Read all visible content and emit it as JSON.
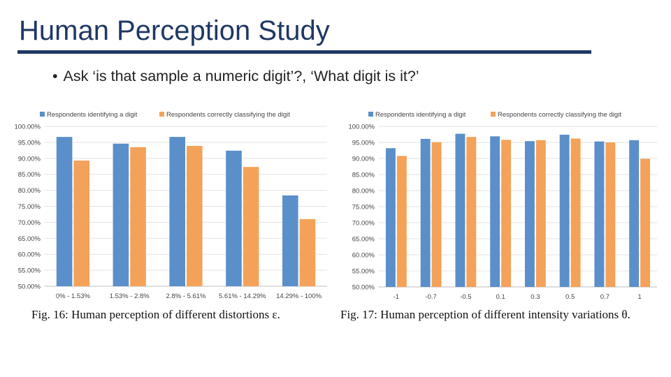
{
  "slide": {
    "title": "Human Perception Study",
    "bullet_marker": "•",
    "bullet": "Ask ‘is that sample a numeric digit’?, ‘What digit is it?’"
  },
  "colors": {
    "series1": "#5b8fc9",
    "series2": "#f4a259",
    "title": "#1f3864"
  },
  "captions": {
    "fig16": "Fig. 16: Human perception of different distortions ε.",
    "fig17": "Fig. 17: Human perception of different intensity variations θ."
  },
  "chart_data": [
    {
      "type": "bar",
      "categories": [
        "0% - 1.53%",
        "1.53% - 2.8%",
        "2.8% - 5.61%",
        "5.61% - 14.29%",
        "14.29% - 100%"
      ],
      "series": [
        {
          "name": "Respondents identifying a digit",
          "values": [
            96.7,
            94.6,
            96.7,
            92.4,
            78.4
          ]
        },
        {
          "name": "Respondents correctly classifying the digit",
          "values": [
            89.3,
            93.5,
            93.9,
            87.3,
            71.0
          ]
        }
      ],
      "ylim": [
        50,
        100
      ],
      "yticks": [
        "50.00%",
        "55.00%",
        "60.00%",
        "65.00%",
        "70.00%",
        "75.00%",
        "80.00%",
        "85.00%",
        "90.00%",
        "95.00%",
        "100.00%"
      ],
      "legend": "top",
      "grid": true
    },
    {
      "type": "bar",
      "categories": [
        "-1",
        "-0.7",
        "-0.5",
        "0.1",
        "0.3",
        "0.5",
        "0.7",
        "1"
      ],
      "series": [
        {
          "name": "Respondents identifying a digit",
          "values": [
            93.2,
            96.1,
            97.7,
            96.9,
            95.4,
            97.4,
            95.3,
            95.7
          ]
        },
        {
          "name": "Respondents correctly classifying the digit",
          "values": [
            90.8,
            95.1,
            96.7,
            95.8,
            95.7,
            96.2,
            95.0,
            89.9
          ]
        }
      ],
      "ylim": [
        50,
        100
      ],
      "yticks": [
        "50.00%",
        "55.00%",
        "60.00%",
        "65.00%",
        "70.00%",
        "75.00%",
        "80.00%",
        "85.00%",
        "90.00%",
        "95.00%",
        "100.00%"
      ],
      "legend": "top",
      "grid": true
    }
  ]
}
